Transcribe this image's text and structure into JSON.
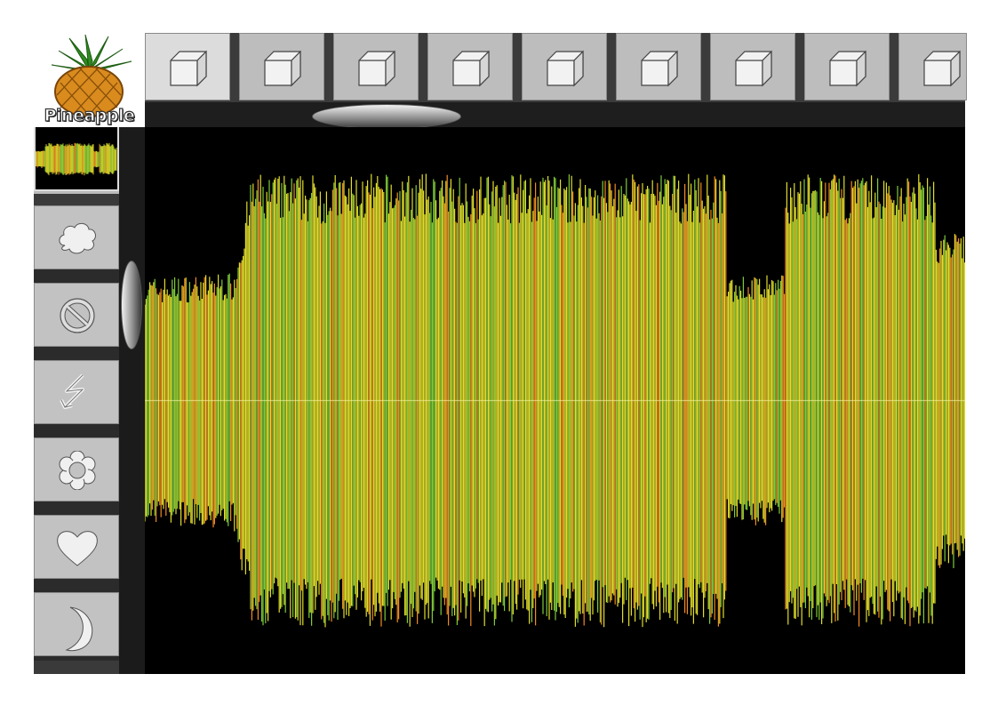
{
  "logo": {
    "text": "Pineapple"
  },
  "top_toolbar": {
    "tiles": [
      {
        "icon": "cube-icon"
      },
      {
        "icon": "cube-icon"
      },
      {
        "icon": "cube-icon"
      },
      {
        "icon": "cube-icon"
      },
      {
        "icon": "cube-icon"
      },
      {
        "icon": "cube-icon"
      },
      {
        "icon": "cube-icon"
      },
      {
        "icon": "cube-icon"
      },
      {
        "icon": "cube-icon"
      }
    ]
  },
  "side_toolbar": {
    "tiles": [
      {
        "icon": "cloud-icon"
      },
      {
        "icon": "prohibited-icon"
      },
      {
        "icon": "lightning-icon"
      },
      {
        "icon": "flower-icon"
      },
      {
        "icon": "heart-icon"
      },
      {
        "icon": "moon-icon"
      }
    ]
  },
  "colors": {
    "waveform_yellow": "#e0dc2c",
    "waveform_green": "#7ecb3a",
    "waveform_orange": "#f08a24",
    "background": "#000000"
  }
}
